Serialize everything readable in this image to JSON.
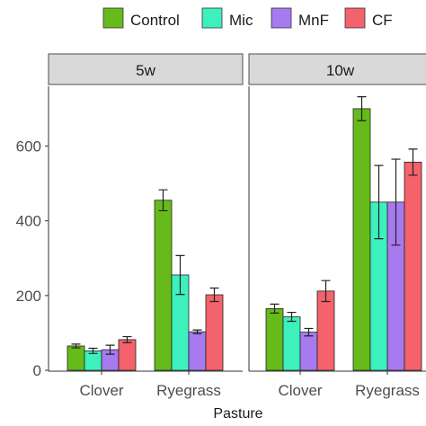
{
  "chart_data": {
    "type": "bar",
    "xlabel": "Pasture",
    "ylabel": "",
    "ylim": [
      0,
      760
    ],
    "yticks": [
      0,
      200,
      400,
      600
    ],
    "grid": false,
    "legend": {
      "position": "top"
    },
    "panels": [
      "5w",
      "10w"
    ],
    "categories": [
      "Clover",
      "Ryegrass"
    ],
    "series": [
      {
        "name": "Control",
        "color": "#66bb1a",
        "values": {
          "5w": [
            65,
            455
          ],
          "10w": [
            165,
            700
          ]
        },
        "errors": {
          "5w": [
            5,
            28
          ],
          "10w": [
            12,
            32
          ]
        }
      },
      {
        "name": "Mic",
        "color": "#3ef0bd",
        "values": {
          "5w": [
            52,
            255
          ],
          "10w": [
            143,
            450
          ]
        },
        "errors": {
          "5w": [
            7,
            52
          ],
          "10w": [
            12,
            98
          ]
        }
      },
      {
        "name": "MnF",
        "color": "#a77af0",
        "values": {
          "5w": [
            55,
            103
          ],
          "10w": [
            102,
            450
          ]
        },
        "errors": {
          "5w": [
            12,
            5
          ],
          "10w": [
            10,
            115
          ]
        }
      },
      {
        "name": "CF",
        "color": "#f4626b",
        "values": {
          "5w": [
            82,
            202
          ],
          "10w": [
            212,
            557
          ]
        },
        "errors": {
          "5w": [
            8,
            18
          ],
          "10w": [
            28,
            35
          ]
        }
      }
    ]
  }
}
